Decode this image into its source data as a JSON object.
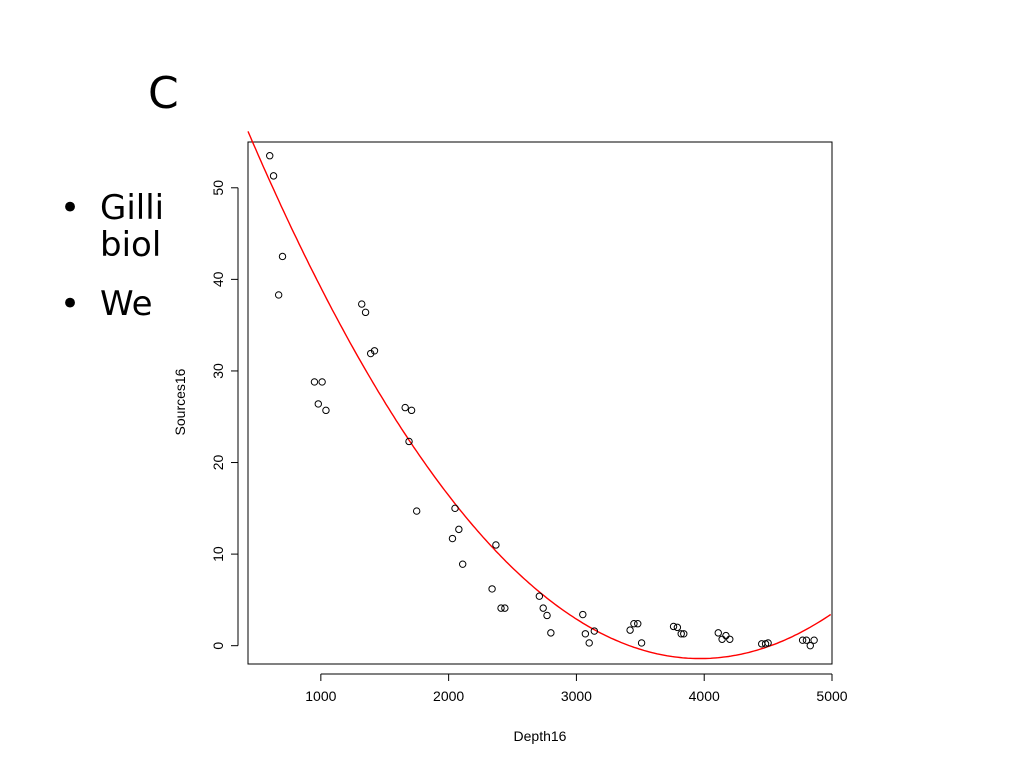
{
  "slide": {
    "title": "C",
    "bullets": [
      {
        "marker": "•",
        "text": "Gilli\nbiol"
      },
      {
        "marker": "•",
        "text": "We"
      }
    ]
  },
  "chart_data": {
    "type": "scatter",
    "xlabel": "Depth16",
    "ylabel": "Sources16",
    "xlim": [
      430,
      5000
    ],
    "ylim": [
      -2,
      55
    ],
    "xticks": [
      1000,
      2000,
      3000,
      4000,
      5000
    ],
    "yticks": [
      0,
      10,
      20,
      30,
      40,
      50
    ],
    "grid": false,
    "point_color": "#000000",
    "fit_color": "#ff0000",
    "points": [
      [
        600,
        53.5
      ],
      [
        630,
        51.3
      ],
      [
        670,
        38.3
      ],
      [
        700,
        42.5
      ],
      [
        950,
        28.8
      ],
      [
        980,
        26.4
      ],
      [
        1010,
        28.8
      ],
      [
        1040,
        25.7
      ],
      [
        1320,
        37.3
      ],
      [
        1350,
        36.4
      ],
      [
        1390,
        31.9
      ],
      [
        1420,
        32.2
      ],
      [
        1660,
        26.0
      ],
      [
        1690,
        22.3
      ],
      [
        1710,
        25.7
      ],
      [
        1750,
        14.7
      ],
      [
        2030,
        11.7
      ],
      [
        2050,
        15.0
      ],
      [
        2080,
        12.7
      ],
      [
        2110,
        8.9
      ],
      [
        2340,
        6.2
      ],
      [
        2370,
        11.0
      ],
      [
        2410,
        4.1
      ],
      [
        2440,
        4.1
      ],
      [
        2710,
        5.4
      ],
      [
        2740,
        4.1
      ],
      [
        2770,
        3.3
      ],
      [
        2800,
        1.4
      ],
      [
        3050,
        3.4
      ],
      [
        3070,
        1.3
      ],
      [
        3100,
        0.3
      ],
      [
        3140,
        1.6
      ],
      [
        3420,
        1.7
      ],
      [
        3450,
        2.4
      ],
      [
        3480,
        2.4
      ],
      [
        3510,
        0.3
      ],
      [
        3760,
        2.1
      ],
      [
        3790,
        2.0
      ],
      [
        3820,
        1.3
      ],
      [
        3840,
        1.3
      ],
      [
        4110,
        1.4
      ],
      [
        4140,
        0.7
      ],
      [
        4170,
        1.1
      ],
      [
        4200,
        0.7
      ],
      [
        4450,
        0.2
      ],
      [
        4480,
        0.2
      ],
      [
        4500,
        0.3
      ],
      [
        4770,
        0.6
      ],
      [
        4800,
        0.6
      ],
      [
        4830,
        0.0
      ],
      [
        4860,
        0.6
      ]
    ],
    "fit": {
      "type": "quadratic",
      "coefficients": [
        71.0,
        -0.0365,
        4.6e-06
      ]
    }
  }
}
